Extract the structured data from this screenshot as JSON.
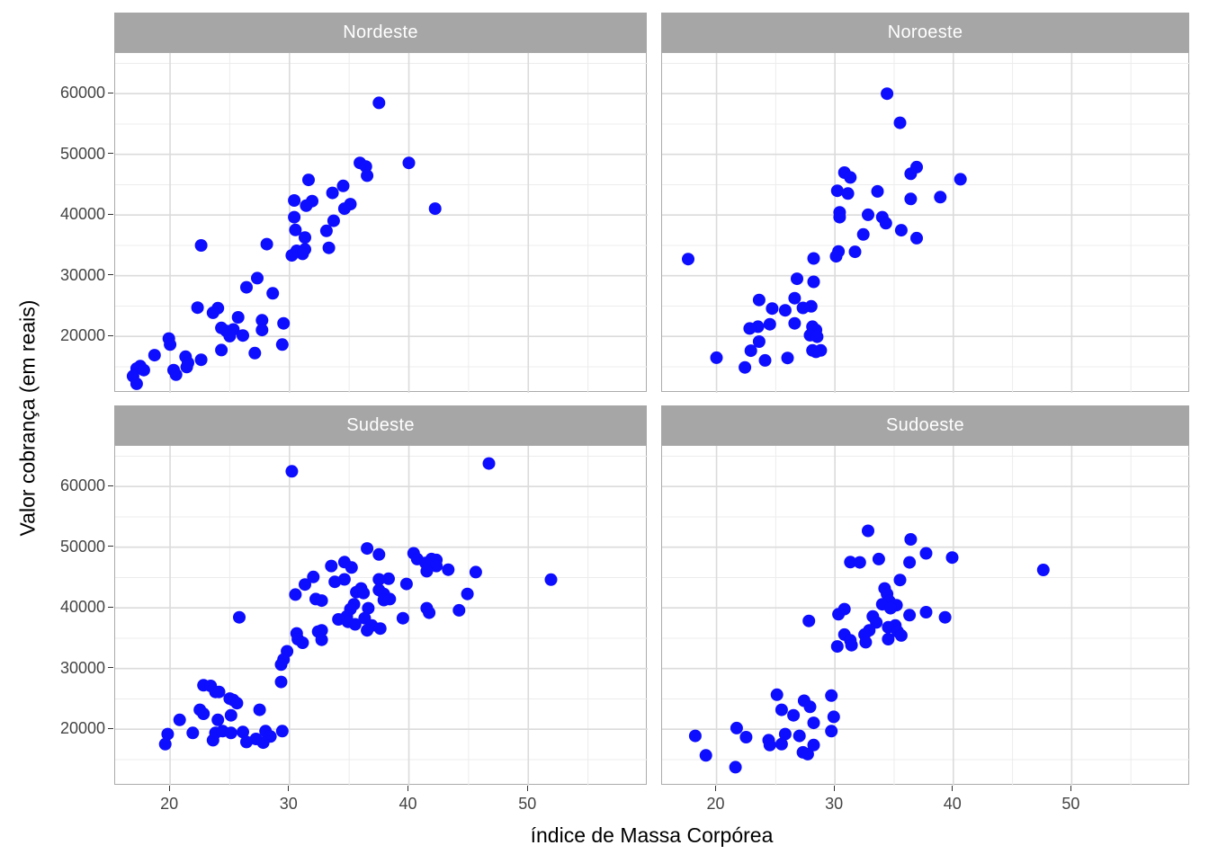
{
  "figure": {
    "point_color": "#0D0DFF",
    "strip_bg": "#A6A6A6",
    "strip_text_color": "#FFFFFF",
    "panel_border": "#ABABAB",
    "grid_major": "#DBDBDB",
    "grid_minor": "#ECECEC",
    "tick_mark_color": "#333333",
    "tick_label_color": "#444444"
  },
  "chart_data": {
    "type": "scatter",
    "title": "",
    "x_label": "índice de Massa Corpórea",
    "y_label": "Valor cobrança (em reais)",
    "legend": "none",
    "grid": true,
    "x_range": [
      15.4,
      60
    ],
    "y_range": [
      10700,
      66700
    ],
    "x_ticks": [
      20,
      30,
      40,
      50
    ],
    "y_ticks": [
      20000,
      30000,
      40000,
      50000,
      60000
    ],
    "x_minor_ticks": [
      25,
      35,
      45,
      55
    ],
    "y_minor_ticks": [
      15000,
      25000,
      35000,
      45000,
      55000,
      65000
    ],
    "facets": [
      {
        "label": "Nordeste",
        "points": [
          [
            37.5,
            58500
          ],
          [
            35.9,
            48600
          ],
          [
            36.4,
            48000
          ],
          [
            40.0,
            48600
          ],
          [
            36.5,
            46500
          ],
          [
            31.6,
            45800
          ],
          [
            34.5,
            44800
          ],
          [
            33.6,
            43650
          ],
          [
            31.9,
            42300
          ],
          [
            30.4,
            42400
          ],
          [
            31.4,
            41550
          ],
          [
            35.1,
            41800
          ],
          [
            34.6,
            41050
          ],
          [
            42.2,
            41050
          ],
          [
            30.4,
            39650
          ],
          [
            33.7,
            39050
          ],
          [
            30.5,
            37550
          ],
          [
            33.1,
            37400
          ],
          [
            31.3,
            36300
          ],
          [
            28.1,
            35200
          ],
          [
            22.6,
            35000
          ],
          [
            33.3,
            34600
          ],
          [
            31.3,
            34350
          ],
          [
            30.6,
            34100
          ],
          [
            31.1,
            33600
          ],
          [
            30.2,
            33350
          ],
          [
            27.3,
            29600
          ],
          [
            26.4,
            28100
          ],
          [
            28.6,
            27100
          ],
          [
            22.3,
            24750
          ],
          [
            24.0,
            24650
          ],
          [
            23.6,
            23900
          ],
          [
            25.7,
            23150
          ],
          [
            27.7,
            22650
          ],
          [
            29.5,
            22150
          ],
          [
            24.3,
            21400
          ],
          [
            25.3,
            21150
          ],
          [
            27.7,
            21050
          ],
          [
            24.7,
            20900
          ],
          [
            26.1,
            20150
          ],
          [
            25.0,
            20050
          ],
          [
            19.9,
            19650
          ],
          [
            20.0,
            18650
          ],
          [
            29.4,
            18650
          ],
          [
            24.3,
            17750
          ],
          [
            27.1,
            17250
          ],
          [
            18.7,
            16900
          ],
          [
            21.3,
            16650
          ],
          [
            22.6,
            16150
          ],
          [
            21.5,
            15650
          ],
          [
            17.5,
            15100
          ],
          [
            21.4,
            14950
          ],
          [
            17.2,
            14700
          ],
          [
            17.8,
            14450
          ],
          [
            20.3,
            14450
          ],
          [
            20.5,
            13700
          ],
          [
            16.9,
            13450
          ],
          [
            17.2,
            12200
          ]
        ]
      },
      {
        "label": "Noroeste",
        "points": [
          [
            34.4,
            60000
          ],
          [
            35.5,
            55200
          ],
          [
            36.9,
            47900
          ],
          [
            30.8,
            47000
          ],
          [
            36.4,
            46800
          ],
          [
            31.3,
            46200
          ],
          [
            40.6,
            45900
          ],
          [
            30.2,
            44000
          ],
          [
            33.6,
            43900
          ],
          [
            31.1,
            43550
          ],
          [
            38.9,
            42950
          ],
          [
            36.4,
            42650
          ],
          [
            30.4,
            40450
          ],
          [
            32.8,
            40050
          ],
          [
            30.4,
            39650
          ],
          [
            34.0,
            39650
          ],
          [
            34.3,
            38650
          ],
          [
            35.6,
            37500
          ],
          [
            32.4,
            36800
          ],
          [
            36.9,
            36200
          ],
          [
            30.3,
            34000
          ],
          [
            31.7,
            33950
          ],
          [
            30.1,
            33200
          ],
          [
            28.2,
            32850
          ],
          [
            17.6,
            32750
          ],
          [
            26.8,
            29500
          ],
          [
            28.2,
            29000
          ],
          [
            26.6,
            26300
          ],
          [
            23.6,
            26000
          ],
          [
            28.0,
            24950
          ],
          [
            27.3,
            24700
          ],
          [
            24.7,
            24600
          ],
          [
            25.8,
            24300
          ],
          [
            26.6,
            22150
          ],
          [
            24.5,
            22000
          ],
          [
            23.5,
            21600
          ],
          [
            28.1,
            21600
          ],
          [
            22.8,
            21300
          ],
          [
            28.4,
            21050
          ],
          [
            27.9,
            20200
          ],
          [
            28.5,
            19950
          ],
          [
            23.6,
            19150
          ],
          [
            28.1,
            17700
          ],
          [
            28.8,
            17700
          ],
          [
            22.9,
            17650
          ],
          [
            28.4,
            17450
          ],
          [
            20.0,
            16500
          ],
          [
            26.0,
            16450
          ],
          [
            24.1,
            16050
          ],
          [
            22.4,
            14900
          ]
        ]
      },
      {
        "label": "Sudeste",
        "points": [
          [
            46.7,
            63800
          ],
          [
            30.2,
            62500
          ],
          [
            36.5,
            49800
          ],
          [
            40.4,
            49000
          ],
          [
            37.5,
            48800
          ],
          [
            41.9,
            48050
          ],
          [
            40.7,
            48050
          ],
          [
            42.3,
            47900
          ],
          [
            34.6,
            47550
          ],
          [
            41.4,
            47400
          ],
          [
            33.5,
            46900
          ],
          [
            42.3,
            46900
          ],
          [
            35.2,
            46650
          ],
          [
            43.3,
            46300
          ],
          [
            41.5,
            46050
          ],
          [
            45.6,
            45900
          ],
          [
            32.0,
            45100
          ],
          [
            38.3,
            44800
          ],
          [
            34.6,
            44700
          ],
          [
            37.5,
            44700
          ],
          [
            51.9,
            44650
          ],
          [
            33.8,
            44300
          ],
          [
            39.8,
            43950
          ],
          [
            31.3,
            43850
          ],
          [
            36.0,
            43200
          ],
          [
            37.5,
            42950
          ],
          [
            35.6,
            42600
          ],
          [
            36.2,
            42450
          ],
          [
            44.9,
            42300
          ],
          [
            37.9,
            42300
          ],
          [
            30.5,
            42200
          ],
          [
            38.4,
            41450
          ],
          [
            32.2,
            41450
          ],
          [
            37.9,
            41300
          ],
          [
            32.7,
            41200
          ],
          [
            35.4,
            40600
          ],
          [
            41.5,
            39950
          ],
          [
            36.6,
            39950
          ],
          [
            35.1,
            39800
          ],
          [
            44.2,
            39600
          ],
          [
            41.7,
            39200
          ],
          [
            25.8,
            38450
          ],
          [
            39.5,
            38300
          ],
          [
            36.3,
            38300
          ],
          [
            34.8,
            38600
          ],
          [
            34.1,
            38100
          ],
          [
            34.9,
            37700
          ],
          [
            35.5,
            37300
          ],
          [
            36.9,
            37100
          ],
          [
            37.6,
            36600
          ],
          [
            36.5,
            36300
          ],
          [
            32.7,
            36300
          ],
          [
            32.4,
            36100
          ],
          [
            30.6,
            35800
          ],
          [
            30.7,
            34850
          ],
          [
            32.7,
            34750
          ],
          [
            31.1,
            34250
          ],
          [
            29.8,
            32850
          ],
          [
            29.5,
            31500
          ],
          [
            29.3,
            30650
          ],
          [
            29.3,
            27800
          ],
          [
            22.8,
            27250
          ],
          [
            23.4,
            27150
          ],
          [
            23.8,
            26150
          ],
          [
            24.1,
            26150
          ],
          [
            25.0,
            25050
          ],
          [
            25.3,
            24800
          ],
          [
            25.6,
            24300
          ],
          [
            27.5,
            23200
          ],
          [
            22.5,
            23200
          ],
          [
            22.8,
            22550
          ],
          [
            25.1,
            22300
          ],
          [
            24.0,
            21550
          ],
          [
            20.8,
            21550
          ],
          [
            21.9,
            19400
          ],
          [
            23.8,
            19400
          ],
          [
            24.4,
            19700
          ],
          [
            28.0,
            19700
          ],
          [
            29.4,
            19700
          ],
          [
            26.1,
            19550
          ],
          [
            25.1,
            19400
          ],
          [
            19.8,
            19200
          ],
          [
            28.4,
            18800
          ],
          [
            27.2,
            18400
          ],
          [
            23.6,
            18200
          ],
          [
            26.4,
            17900
          ],
          [
            27.8,
            17800
          ],
          [
            19.6,
            17550
          ]
        ]
      },
      {
        "label": "Sudoeste",
        "points": [
          [
            32.8,
            52700
          ],
          [
            36.4,
            51300
          ],
          [
            37.7,
            49000
          ],
          [
            39.9,
            48300
          ],
          [
            33.7,
            48050
          ],
          [
            31.3,
            47550
          ],
          [
            32.1,
            47500
          ],
          [
            36.3,
            47500
          ],
          [
            47.6,
            46250
          ],
          [
            35.5,
            44600
          ],
          [
            34.2,
            43200
          ],
          [
            34.4,
            42300
          ],
          [
            34.6,
            41100
          ],
          [
            34.0,
            40600
          ],
          [
            35.2,
            40450
          ],
          [
            34.7,
            39950
          ],
          [
            30.8,
            39800
          ],
          [
            37.7,
            39300
          ],
          [
            30.3,
            38950
          ],
          [
            36.3,
            38800
          ],
          [
            33.2,
            38600
          ],
          [
            39.3,
            38450
          ],
          [
            27.8,
            37850
          ],
          [
            33.5,
            37600
          ],
          [
            35.1,
            37100
          ],
          [
            34.5,
            36800
          ],
          [
            32.9,
            36300
          ],
          [
            35.3,
            36100
          ],
          [
            32.5,
            35600
          ],
          [
            30.8,
            35600
          ],
          [
            35.6,
            35450
          ],
          [
            34.5,
            34850
          ],
          [
            31.3,
            34650
          ],
          [
            32.6,
            34350
          ],
          [
            31.4,
            33850
          ],
          [
            30.2,
            33650
          ],
          [
            25.1,
            25700
          ],
          [
            29.7,
            25550
          ],
          [
            27.4,
            24700
          ],
          [
            27.9,
            23700
          ],
          [
            25.5,
            23200
          ],
          [
            26.5,
            22300
          ],
          [
            29.9,
            22050
          ],
          [
            28.2,
            21050
          ],
          [
            21.7,
            20200
          ],
          [
            29.7,
            19700
          ],
          [
            25.8,
            19200
          ],
          [
            27.0,
            18900
          ],
          [
            18.2,
            18900
          ],
          [
            22.5,
            18700
          ],
          [
            24.4,
            18200
          ],
          [
            25.5,
            17550
          ],
          [
            24.5,
            17400
          ],
          [
            28.2,
            17400
          ],
          [
            27.3,
            16200
          ],
          [
            27.7,
            15900
          ],
          [
            19.1,
            15700
          ],
          [
            21.6,
            13750
          ]
        ]
      }
    ]
  }
}
